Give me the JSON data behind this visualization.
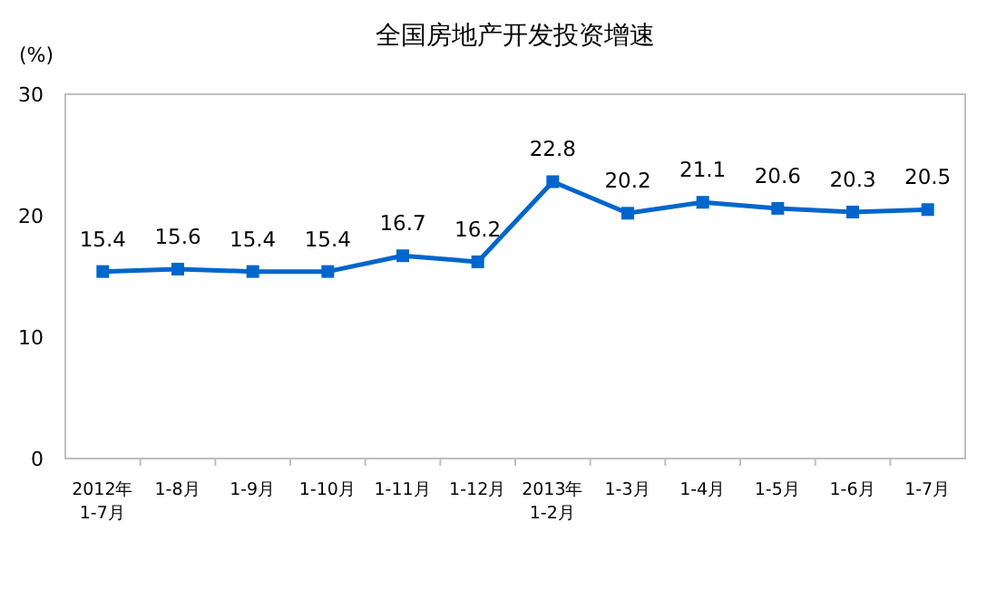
{
  "chart_data": {
    "type": "line",
    "title": "全国房地产开发投资增速",
    "ylabel": "(%)",
    "categories": [
      "2012年\n1-7月",
      "1-8月",
      "1-9月",
      "1-10月",
      "1-11月",
      "1-12月",
      "2013年\n1-2月",
      "1-3月",
      "1-4月",
      "1-5月",
      "1-6月",
      "1-7月"
    ],
    "series": [
      {
        "color": "#0066cc",
        "values": [
          15.4,
          15.6,
          15.4,
          15.4,
          16.7,
          16.2,
          22.8,
          20.2,
          21.1,
          20.6,
          20.3,
          20.5
        ]
      }
    ],
    "ylim": [
      0,
      30
    ],
    "yticks": [
      0,
      10,
      20,
      30
    ],
    "grid": false,
    "marker": "square",
    "line_style": "solid",
    "data_labels": true
  }
}
